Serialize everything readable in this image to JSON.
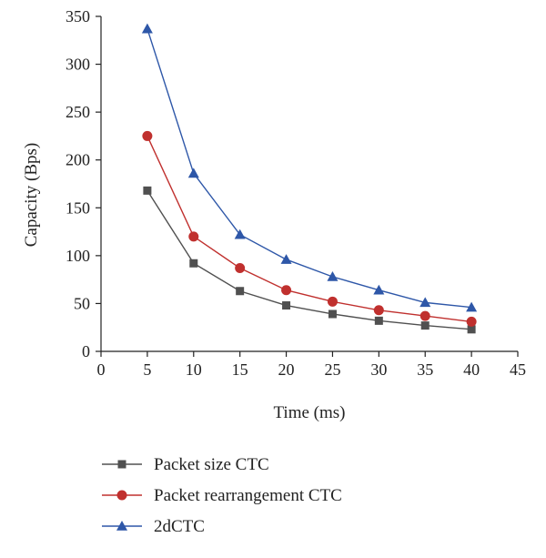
{
  "chart_data": {
    "type": "line",
    "title": "",
    "xlabel": "Time (ms)",
    "ylabel": "Capacity (Bps)",
    "xlim": [
      0,
      45
    ],
    "ylim": [
      0,
      350
    ],
    "xticks": [
      0,
      5,
      10,
      15,
      20,
      25,
      30,
      35,
      40,
      45
    ],
    "yticks": [
      0,
      50,
      100,
      150,
      200,
      250,
      300,
      350
    ],
    "grid": false,
    "legend_position": "bottom",
    "x": [
      5,
      10,
      15,
      20,
      25,
      30,
      35,
      40
    ],
    "series": [
      {
        "name": "Packet size CTC",
        "marker": "square",
        "color": "#505050",
        "values": [
          168,
          92,
          63,
          48,
          39,
          32,
          27,
          23
        ]
      },
      {
        "name": "Packet rearrangement CTC",
        "marker": "circle",
        "color": "#c0302e",
        "values": [
          225,
          120,
          87,
          64,
          52,
          43,
          37,
          31
        ]
      },
      {
        "name": "2dCTC",
        "marker": "triangle",
        "color": "#2e57a8",
        "values": [
          337,
          186,
          122,
          96,
          78,
          64,
          51,
          46
        ]
      }
    ]
  }
}
